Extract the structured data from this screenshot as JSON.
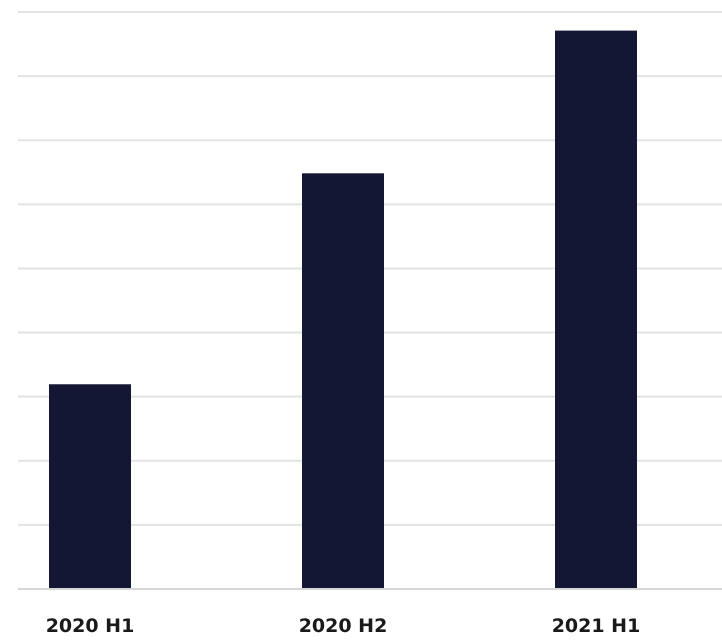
{
  "chart_data": {
    "type": "bar",
    "categories": [
      "2020 H1",
      "2020 H2",
      "2021 H1"
    ],
    "values": [
      3.3,
      6.7,
      9.0
    ],
    "ylim": [
      0,
      9.3
    ],
    "grid": true,
    "bar_color": "#131733",
    "grid_color": "#e3e3e3",
    "tick_label_color": "#1a1a1a"
  }
}
